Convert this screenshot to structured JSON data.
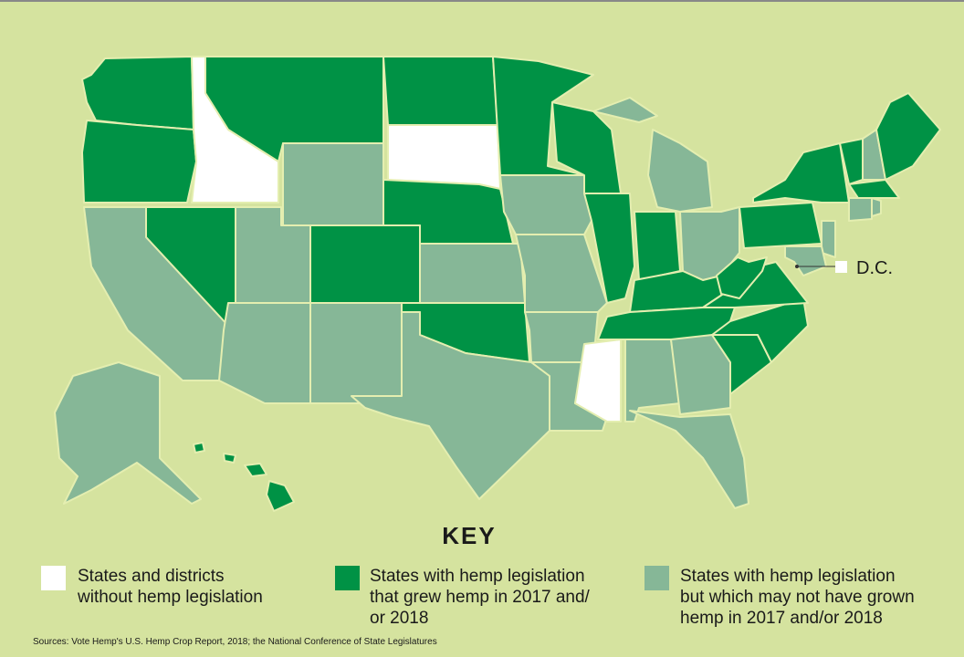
{
  "map": {
    "dc_label": "D.C.",
    "key_title": "KEY",
    "legend": [
      {
        "lines": [
          "States and districts",
          "without hemp legislation"
        ]
      },
      {
        "lines": [
          "States with hemp legislation",
          "that grew hemp in 2017 and/",
          "or 2018"
        ]
      },
      {
        "lines": [
          "States with hemp legislation",
          "but which may not have grown",
          "hemp in 2017 and/or 2018"
        ]
      }
    ],
    "source": "Sources: Vote Hemp's U.S. Hemp Crop Report, 2018; the National Conference of State Legislatures"
  }
}
